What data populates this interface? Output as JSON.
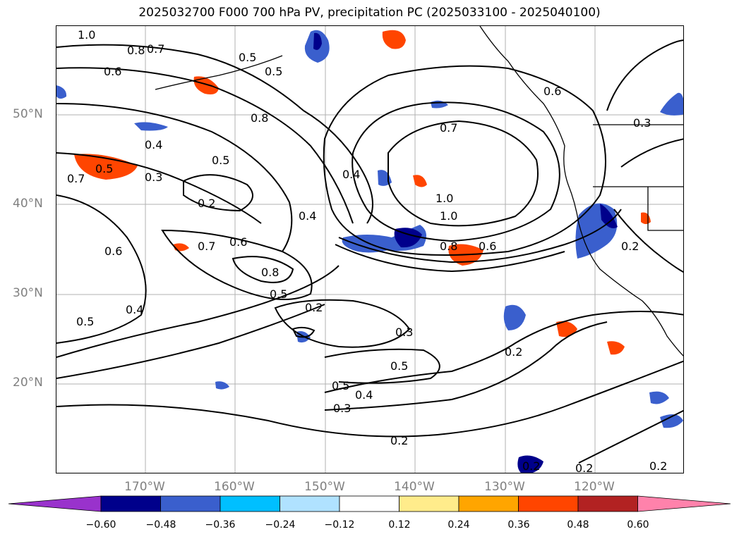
{
  "title": "2025032700 F000 700 hPa PV, precipitation PC (2025033100 - 2025040100)",
  "lat_labels": [
    "50°N",
    "40°N",
    "30°N",
    "20°N"
  ],
  "lon_labels": [
    "170°W",
    "160°W",
    "150°W",
    "140°W",
    "130°W",
    "120°W"
  ],
  "colorbar": {
    "ticks": [
      "−0.60",
      "−0.48",
      "−0.36",
      "−0.24",
      "−0.12",
      "0.12",
      "0.24",
      "0.36",
      "0.48",
      "0.60"
    ],
    "colors": [
      "#9932cc",
      "#00008b",
      "#3a5fcd",
      "#00bfff",
      "#b0e2ff",
      "#ffffff",
      "#ffec8b",
      "#ffa500",
      "#ff4500",
      "#b22222",
      "#ff82ab"
    ]
  },
  "contour_labels": [
    "1.0",
    "0.8",
    "0.7",
    "0.6",
    "0.5",
    "0.5",
    "0.8",
    "0.4",
    "0.5",
    "0.5",
    "0.7",
    "0.3",
    "0.2",
    "0.6",
    "0.4",
    "0.7",
    "0.6",
    "0.8",
    "0.5",
    "0.4",
    "0.5",
    "0.2",
    "0.3",
    "0.5",
    "0.5",
    "0.4",
    "0.3",
    "0.2",
    "0.4",
    "0.7",
    "1.0",
    "1.0",
    "0.8",
    "0.6",
    "0.6",
    "0.3",
    "0.2",
    "0.2",
    "0.2",
    "0.2",
    "0.2"
  ]
}
